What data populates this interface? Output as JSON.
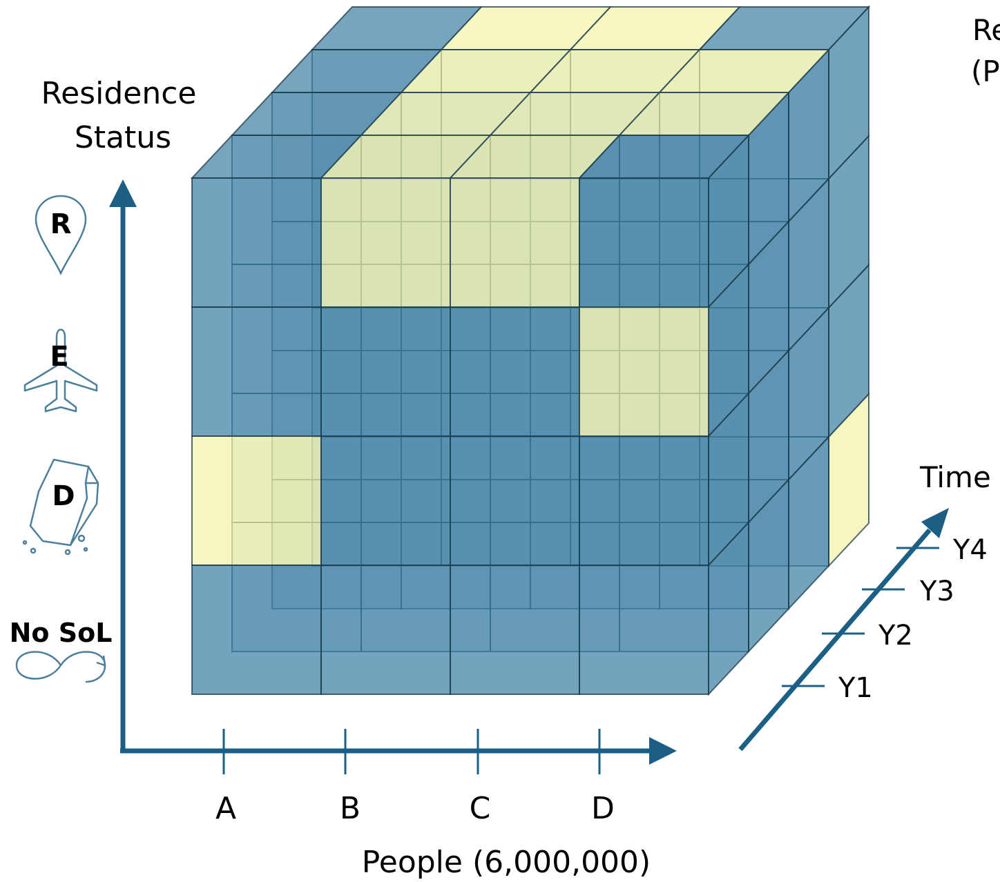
{
  "y_axis": {
    "title_line1": "Residence",
    "title_line2": "Status",
    "categories": [
      {
        "label": "R",
        "icon": "location-pin-icon"
      },
      {
        "label": "E",
        "icon": "airplane-icon"
      },
      {
        "label": "D",
        "icon": "coffin-icon"
      },
      {
        "label": "No SoL",
        "icon": "infinity-icon"
      }
    ]
  },
  "x_axis": {
    "title": "People (6,000,000)",
    "ticks": [
      "A",
      "B",
      "C",
      "D"
    ]
  },
  "z_axis": {
    "title": "Time",
    "ticks": [
      "Y1",
      "Y2",
      "Y3",
      "Y4"
    ]
  },
  "corner_text": {
    "line1": "Re",
    "line2": "(P"
  },
  "colors": {
    "axis": "#1b5f85",
    "blue_cell": "#3f7fa3",
    "yellow_cell": "#f3f3a8",
    "edge": "#1a3a4a",
    "icon": "#4d7e9a"
  },
  "cube": {
    "rows_top_to_bottom": [
      "R",
      "E",
      "D",
      "No SoL"
    ],
    "front_layer": [
      [
        "blue",
        "yellow",
        "yellow",
        "blue"
      ],
      [
        "blue",
        "blue",
        "blue",
        "yellow"
      ],
      [
        "yellow",
        "blue",
        "blue",
        "blue"
      ],
      [
        "blue",
        "blue",
        "blue",
        "blue"
      ]
    ],
    "top_layer_back_to_front": [
      [
        "blue",
        "yellow",
        "yellow",
        "blue"
      ],
      [
        "blue",
        "yellow",
        "yellow",
        "yellow"
      ],
      [
        "blue",
        "yellow",
        "yellow",
        "yellow"
      ],
      [
        "blue",
        "yellow",
        "yellow",
        "blue"
      ]
    ],
    "right_layer_bottom_row_back_to_front": [
      "yellow",
      "blue",
      "blue",
      "blue"
    ]
  }
}
